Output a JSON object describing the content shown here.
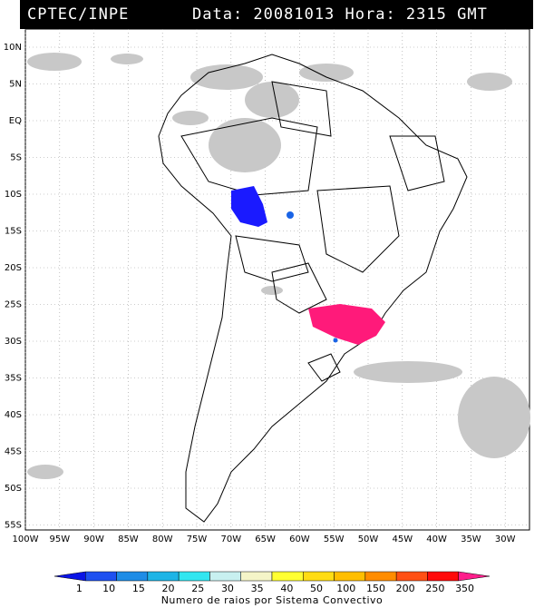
{
  "header": {
    "org": "CPTEC/INPE",
    "datetime": "Data: 20081013 Hora: 2315 GMT"
  },
  "map": {
    "lat_labels": [
      "10N",
      "5N",
      "EQ",
      "5S",
      "10S",
      "15S",
      "20S",
      "25S",
      "30S",
      "35S",
      "40S",
      "45S",
      "50S",
      "55S"
    ],
    "lon_labels": [
      "100W",
      "95W",
      "90W",
      "85W",
      "80W",
      "75W",
      "70W",
      "65W",
      "60W",
      "55W",
      "50W",
      "45W",
      "40W",
      "35W",
      "30W"
    ],
    "cloud_color": "#c8c8c8",
    "systems": [
      {
        "label": "blue-cluster",
        "color": "#1a1aff"
      },
      {
        "label": "magenta-cluster",
        "color": "#ff1a7a"
      }
    ]
  },
  "legend": {
    "ticks": [
      "1",
      "10",
      "15",
      "20",
      "25",
      "30",
      "35",
      "40",
      "50",
      "100",
      "150",
      "200",
      "250",
      "350"
    ],
    "colors": [
      "#0a14e6",
      "#1e50f0",
      "#1e8ce6",
      "#1eb4e6",
      "#32e6f0",
      "#c8f0f0",
      "#f5f5c8",
      "#ffff32",
      "#ffdc14",
      "#ffbe00",
      "#ff8c00",
      "#ff5014",
      "#ff0a0a",
      "#ff1e8c"
    ],
    "caption": "Numero de raios por Sistema Convectivo"
  }
}
